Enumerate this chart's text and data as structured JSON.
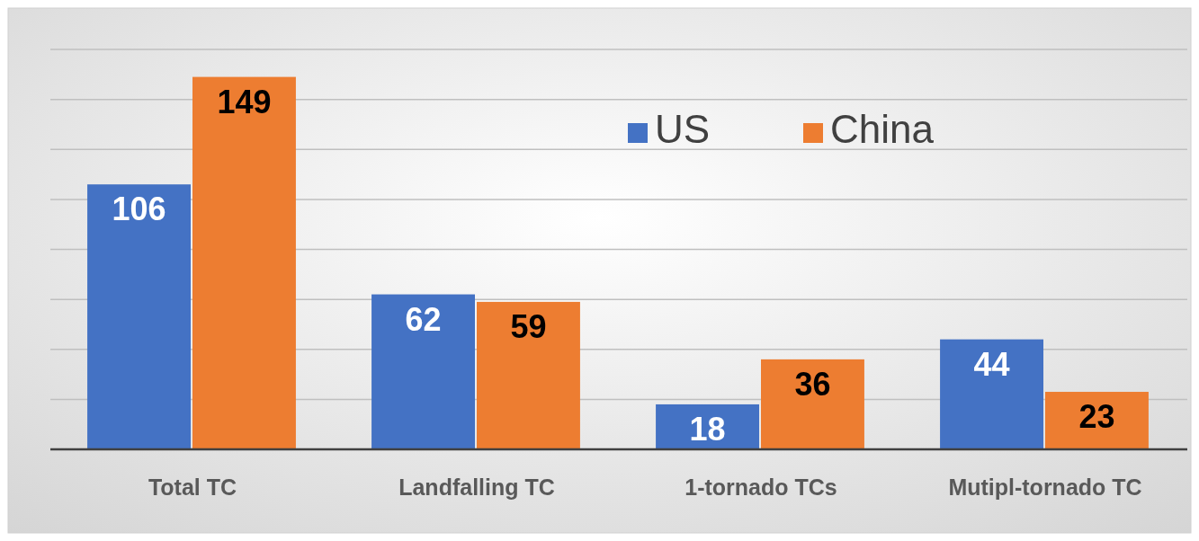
{
  "chart_data": {
    "type": "bar",
    "categories": [
      "Total TC",
      "Landfalling TC",
      "1-tornado TCs",
      "Mutipl-tornado TC"
    ],
    "series": [
      {
        "name": "US",
        "color": "#4472c4",
        "values": [
          106,
          62,
          18,
          44
        ]
      },
      {
        "name": "China",
        "color": "#ed7d31",
        "values": [
          149,
          59,
          36,
          23
        ]
      }
    ],
    "ylim": [
      0,
      160
    ],
    "yticks": [
      {
        "value": 0,
        "label": null
      },
      {
        "value": 20,
        "label": null
      },
      {
        "value": 40,
        "label": null
      },
      {
        "value": 60,
        "label": null
      },
      {
        "value": 80,
        "label": null
      },
      {
        "value": 100,
        "label": null
      },
      {
        "value": 120,
        "label": null
      },
      {
        "value": 140,
        "label": null
      },
      {
        "value": 160,
        "label": null
      }
    ],
    "grid": true,
    "legend": "top right",
    "data_labels": true,
    "tick_labels": "x"
  }
}
